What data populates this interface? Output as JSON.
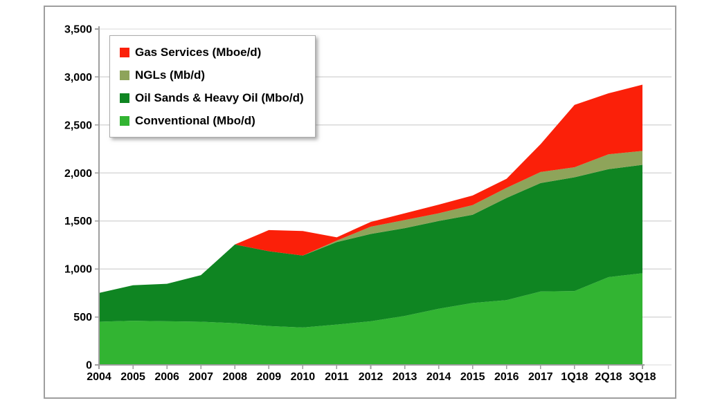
{
  "chart_data": {
    "type": "area",
    "stacked": true,
    "title": "",
    "categories": [
      "2004",
      "2005",
      "2006",
      "2007",
      "2008",
      "2009",
      "2010",
      "2011",
      "2012",
      "2013",
      "2014",
      "2015",
      "2016",
      "2017",
      "1Q18",
      "2Q18",
      "3Q18"
    ],
    "series": [
      {
        "key": "conventional",
        "name": "Conventional (Mbo/d)",
        "color": "#32b432",
        "values": [
          450,
          460,
          455,
          450,
          435,
          405,
          390,
          420,
          455,
          510,
          585,
          645,
          675,
          765,
          770,
          915,
          955
        ]
      },
      {
        "key": "oil-sands-heavy-oil",
        "name": "Oil Sands & Heavy Oil (Mbo/d)",
        "color": "#0f8522",
        "values": [
          300,
          370,
          390,
          485,
          820,
          780,
          750,
          860,
          910,
          915,
          915,
          920,
          1065,
          1130,
          1185,
          1125,
          1130
        ]
      },
      {
        "key": "ngls",
        "name": "NGLs (Mb/d)",
        "color": "#8ea45a",
        "values": [
          0,
          0,
          0,
          0,
          0,
          0,
          0,
          15,
          75,
          85,
          80,
          100,
          105,
          115,
          105,
          155,
          145
        ]
      },
      {
        "key": "gas-services",
        "name": "Gas Services (Mboe/d)",
        "color": "#fb2009",
        "values": [
          0,
          0,
          0,
          0,
          0,
          220,
          255,
          35,
          50,
          70,
          90,
          100,
          95,
          290,
          650,
          635,
          690
        ]
      }
    ],
    "stack_totals": [
      750,
      830,
      845,
      935,
      1255,
      1405,
      1395,
      1330,
      1490,
      1580,
      1670,
      1765,
      1940,
      2300,
      2710,
      2830,
      2920
    ],
    "ylim": [
      0,
      3500
    ],
    "ytick_step": 500,
    "ytick_labels": [
      "0",
      "500",
      "1,000",
      "1,500",
      "2,000",
      "2,500",
      "3,000",
      "3,500"
    ],
    "grid": true,
    "legend_position": "top-left"
  },
  "legend": {
    "items": [
      {
        "key": "gas-services",
        "label": "Gas Services (Mboe/d)",
        "color": "#fb2009"
      },
      {
        "key": "ngls",
        "label": "NGLs (Mb/d)",
        "color": "#8ea45a"
      },
      {
        "key": "oil-sands-heavy-oil",
        "label": "Oil Sands & Heavy Oil (Mbo/d)",
        "color": "#0f8522"
      },
      {
        "key": "conventional",
        "label": "Conventional (Mbo/d)",
        "color": "#32b432"
      }
    ]
  },
  "colors": {
    "gridline": "#d8d8d8",
    "axis": "#9e9e9e",
    "window_border": "#9e9e9e",
    "text": "#000000",
    "background": "#ffffff"
  }
}
